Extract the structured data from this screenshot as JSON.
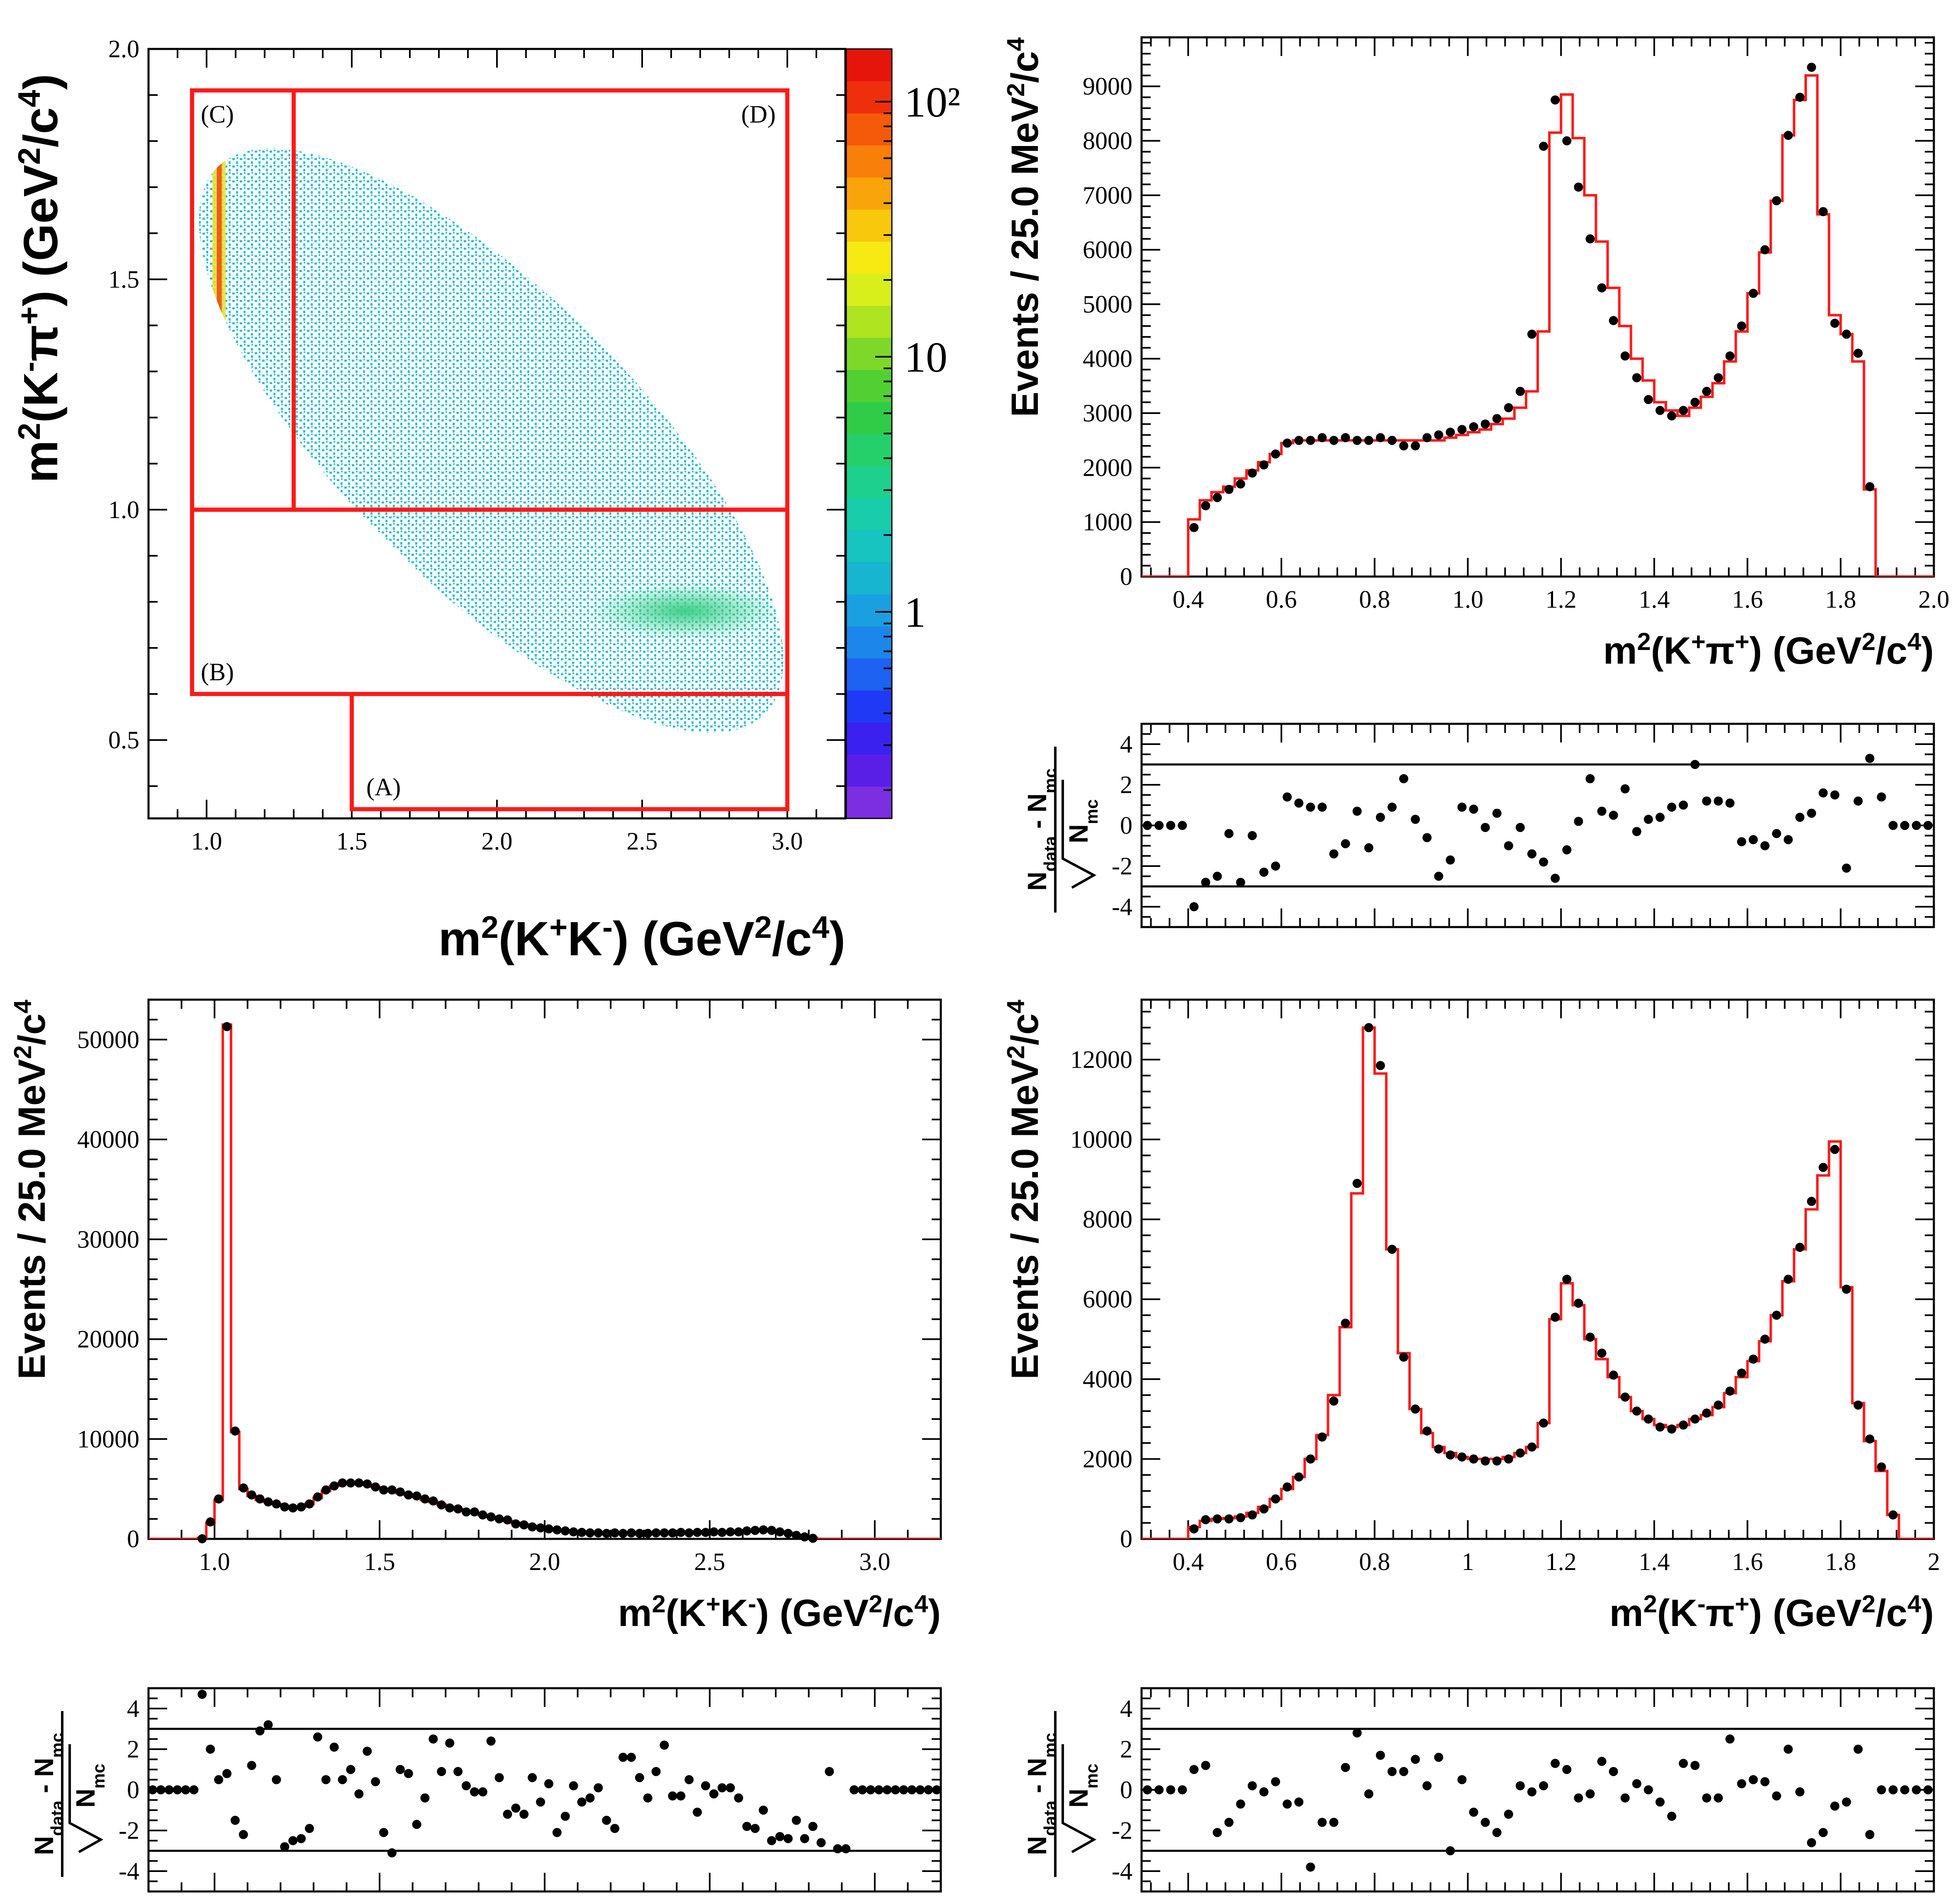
{
  "chart_data": [
    {
      "id": "dalitz",
      "type": "heatmap",
      "title": "",
      "xlabel": "m<sup>2</sup>(K<sup>+</sup>K<sup>-</sup>) (GeV<sup>2</sup>/c<sup>4</sup>)",
      "ylabel": "m<sup>2</sup>(K<sup>-</sup>π<sup>+</sup>) (GeV<sup>2</sup>/c<sup>4</sup>)",
      "xlim": [
        0.8,
        3.2
      ],
      "ylim": [
        0.33,
        2.0
      ],
      "xticks": [
        1.0,
        1.5,
        2.0,
        2.5,
        3.0
      ],
      "xtick_labels": [
        "1.0",
        "1.5",
        "2.0",
        "2.5",
        "3.0"
      ],
      "yticks": [
        0.5,
        1.0,
        1.5,
        2.0
      ],
      "ytick_labels": [
        "0.5",
        "1.0",
        "1.5",
        "2.0"
      ],
      "colorbar": {
        "scale": "log",
        "labels": [
          "1",
          "10",
          "10²"
        ],
        "label_values": [
          1,
          10,
          100
        ],
        "colors": [
          "#7b2fe0",
          "#5a1fe6",
          "#3a21f0",
          "#1f3af5",
          "#1d62f0",
          "#1c86ea",
          "#1aa0e0",
          "#18b5d0",
          "#17c4bf",
          "#19ccaa",
          "#1dd08e",
          "#25d06b",
          "#30cc47",
          "#52d033",
          "#7ed82a",
          "#aee420",
          "#d9ef1c",
          "#f6ea12",
          "#f8c80d",
          "#f9a40a",
          "#f87f09",
          "#f45a0a",
          "#ee2f0b",
          "#e6150c"
        ]
      },
      "regions": [
        {
          "label": "(A)",
          "x0": 1.5,
          "x1": 3.0,
          "y0": 0.35,
          "y1": 0.6
        },
        {
          "label": "(B)",
          "x0": 0.95,
          "x1": 3.0,
          "y0": 0.6,
          "y1": 1.0
        },
        {
          "label": "(C)",
          "x0": 0.95,
          "x1": 1.3,
          "y0": 1.0,
          "y1": 1.91
        },
        {
          "label": "(D)",
          "x0": 1.3,
          "x1": 3.0,
          "y0": 1.0,
          "y1": 1.91
        }
      ]
    },
    {
      "id": "kpip",
      "type": "histogram",
      "xlabel": "m<sup>2</sup>(K<sup>+</sup>π<sup>+</sup>) (GeV<sup>2</sup>/c<sup>4</sup>)",
      "ylabel": "Events / 25.0 MeV<sup>2</sup>/c<sup>4</sup>",
      "xlim": [
        0.3,
        2.0
      ],
      "ylim": [
        0,
        9900
      ],
      "xticks": [
        0.4,
        0.6,
        0.8,
        1.0,
        1.2,
        1.4,
        1.6,
        1.8,
        2.0
      ],
      "xtick_labels": [
        "0.4",
        "0.6",
        "0.8",
        "1.0",
        "1.2",
        "1.4",
        "1.6",
        "1.8",
        "2.0"
      ],
      "yticks": [
        0,
        1000,
        2000,
        3000,
        4000,
        5000,
        6000,
        7000,
        8000,
        9000
      ],
      "ytick_labels": [
        "0",
        "1000",
        "2000",
        "3000",
        "4000",
        "5000",
        "6000",
        "7000",
        "8000",
        "9000"
      ],
      "x_start": 0.3,
      "bin_width": 0.025,
      "mc": [
        0,
        0,
        0,
        0,
        1050,
        1400,
        1550,
        1650,
        1800,
        1950,
        2100,
        2250,
        2450,
        2500,
        2500,
        2500,
        2500,
        2500,
        2500,
        2500,
        2500,
        2500,
        2500,
        2500,
        2500,
        2500,
        2550,
        2600,
        2650,
        2700,
        2800,
        2900,
        3100,
        3400,
        4500,
        8150,
        8850,
        8050,
        7000,
        6150,
        5300,
        4600,
        4000,
        3600,
        3200,
        3050,
        2950,
        3100,
        3300,
        3550,
        3950,
        4500,
        5200,
        5950,
        6900,
        8100,
        8750,
        9200,
        6650,
        4800,
        4450,
        3950,
        1600,
        0,
        0,
        0,
        0,
        0
      ],
      "data": [
        null,
        null,
        null,
        null,
        900,
        1300,
        1450,
        1600,
        1700,
        1900,
        2050,
        2250,
        2450,
        2500,
        2500,
        2550,
        2500,
        2550,
        2500,
        2500,
        2550,
        2500,
        2400,
        2400,
        2550,
        2600,
        2650,
        2700,
        2750,
        2800,
        2900,
        3100,
        3400,
        4450,
        7900,
        8750,
        8000,
        7150,
        6200,
        5300,
        4700,
        4050,
        3650,
        3250,
        3050,
        2950,
        3050,
        3200,
        3400,
        3650,
        4050,
        4600,
        5200,
        6000,
        6900,
        8100,
        8800,
        9350,
        6700,
        4650,
        4450,
        4100,
        1650,
        null,
        null,
        null,
        null,
        null
      ],
      "residual_ylim": [
        -5.0,
        5.0
      ],
      "residual_yticks": [
        -4,
        -2,
        0,
        2,
        4
      ],
      "residual_ytick_labels": [
        "-4",
        "-2",
        "0",
        "2",
        "4"
      ],
      "residual_lines": [
        -3,
        3
      ],
      "residual_ylabel": "N<sub>data</sub> - N<sub>mc</sub>",
      "residual_ylabel_sqrt": "N<sub>mc</sub>",
      "residuals": [
        0,
        0,
        0,
        0,
        -4.0,
        -2.8,
        -2.5,
        -0.4,
        -2.8,
        -0.5,
        -2.3,
        -2.0,
        1.4,
        1.1,
        0.9,
        0.9,
        -1.4,
        -0.9,
        0.7,
        -1.1,
        0.4,
        0.9,
        2.3,
        0.3,
        -0.6,
        -2.5,
        -1.7,
        0.9,
        0.8,
        -0.1,
        0.6,
        -1.0,
        -0.1,
        -1.4,
        -1.8,
        -2.6,
        -1.2,
        0.2,
        2.3,
        0.7,
        0.5,
        1.8,
        -0.3,
        0.3,
        0.4,
        0.9,
        1.0,
        3.0,
        1.2,
        1.2,
        1.1,
        -0.8,
        -0.7,
        -1.0,
        -0.4,
        -0.7,
        0.4,
        0.6,
        1.6,
        1.5,
        -2.1,
        1.2,
        3.3,
        1.4,
        0,
        0,
        0,
        0
      ]
    },
    {
      "id": "kk",
      "type": "histogram",
      "xlabel": "m<sup>2</sup>(K<sup>+</sup>K<sup>-</sup>) (GeV<sup>2</sup>/c<sup>4</sup>)",
      "ylabel": "Events / 25.0 MeV<sup>2</sup>/c<sup>4</sup>",
      "xlim": [
        0.8,
        3.2
      ],
      "ylim": [
        0,
        54000
      ],
      "xticks": [
        1.0,
        1.5,
        2.0,
        2.5,
        3.0
      ],
      "xtick_labels": [
        "1.0",
        "1.5",
        "2.0",
        "2.5",
        "3.0"
      ],
      "yticks": [
        0,
        10000,
        20000,
        30000,
        40000,
        50000
      ],
      "ytick_labels": [
        "0",
        "10000",
        "20000",
        "30000",
        "40000",
        "50000"
      ],
      "x_start": 0.8,
      "bin_width": 0.025,
      "mc": [
        0,
        0,
        0,
        0,
        0,
        0,
        100,
        1600,
        3900,
        51500,
        10700,
        5000,
        4300,
        3900,
        3700,
        3500,
        3300,
        3200,
        3200,
        3500,
        4100,
        4800,
        5300,
        5550,
        5600,
        5550,
        5400,
        5200,
        5000,
        4800,
        4600,
        4400,
        4200,
        3900,
        3700,
        3450,
        3200,
        3000,
        2800,
        2600,
        2400,
        2200,
        2000,
        1800,
        1600,
        1450,
        1300,
        1150,
        1000,
        900,
        800,
        700,
        650,
        600,
        600,
        600,
        600,
        600,
        600,
        600,
        600,
        600,
        600,
        600,
        650,
        650,
        650,
        700,
        700,
        700,
        750,
        800,
        850,
        900,
        900,
        850,
        750,
        600,
        400,
        250,
        100,
        0,
        0,
        0,
        0,
        0,
        0,
        0,
        0,
        0,
        0,
        0,
        0,
        0,
        0,
        0
      ],
      "data": [
        null,
        null,
        null,
        null,
        null,
        null,
        10,
        1700,
        4000,
        51300,
        10800,
        5100,
        4400,
        4000,
        3700,
        3500,
        3200,
        3100,
        3200,
        3500,
        4200,
        4900,
        5300,
        5600,
        5600,
        5600,
        5500,
        5200,
        4900,
        4900,
        4700,
        4400,
        4300,
        4000,
        3800,
        3400,
        3100,
        3000,
        2700,
        2700,
        2400,
        2200,
        2000,
        1900,
        1500,
        1400,
        1200,
        1100,
        1000,
        900,
        800,
        700,
        650,
        600,
        600,
        550,
        600,
        550,
        600,
        550,
        550,
        600,
        600,
        600,
        650,
        600,
        650,
        650,
        700,
        650,
        700,
        700,
        800,
        850,
        900,
        850,
        700,
        550,
        350,
        200,
        60,
        null,
        null,
        null,
        null,
        null,
        null,
        null,
        null,
        null,
        null,
        null,
        null,
        null,
        null,
        null
      ],
      "residual_ylim": [
        -5.0,
        5.0
      ],
      "residual_yticks": [
        -4,
        -2,
        0,
        2,
        4
      ],
      "residual_ytick_labels": [
        "-4",
        "-2",
        "0",
        "2",
        "4"
      ],
      "residual_lines": [
        -3,
        3
      ],
      "residual_ylabel": "N<sub>data</sub> - N<sub>mc</sub>",
      "residual_ylabel_sqrt": "N<sub>mc</sub>",
      "residuals": [
        0,
        0,
        0,
        0,
        0,
        0,
        4.7,
        2.0,
        0.5,
        0.8,
        -1.5,
        -2.2,
        1.2,
        2.9,
        3.2,
        0.5,
        -2.8,
        -2.5,
        -2.4,
        -1.9,
        2.6,
        0.5,
        2.1,
        0.5,
        1.0,
        -0.2,
        1.9,
        0.4,
        -2.1,
        -3.1,
        1.0,
        0.8,
        -1.7,
        -0.4,
        2.5,
        0.9,
        2.3,
        0.9,
        0.2,
        -0.1,
        -0.1,
        2.4,
        0.6,
        -1.2,
        -0.9,
        -1.2,
        0.6,
        -0.6,
        0.3,
        -2.1,
        -1.3,
        0.2,
        -0.6,
        -0.4,
        0.1,
        -1.5,
        -1.9,
        1.6,
        1.6,
        0.6,
        -0.4,
        0.9,
        2.2,
        -0.3,
        -0.3,
        0.5,
        -1.1,
        0.2,
        -0.2,
        0.1,
        0.1,
        -0.4,
        -1.8,
        -1.9,
        -1.0,
        -2.5,
        -2.3,
        -2.4,
        -1.5,
        -2.4,
        -1.8,
        -2.6,
        0.9,
        -2.9,
        -2.9,
        0,
        0,
        0,
        0,
        0,
        0,
        0,
        0,
        0,
        0,
        0
      ]
    },
    {
      "id": "kmpip",
      "type": "histogram",
      "xlabel": "m<sup>2</sup>(K<sup>-</sup>π<sup>+</sup>) (GeV<sup>2</sup>/c<sup>4</sup>)",
      "ylabel": "Events / 25.0 MeV<sup>2</sup>/c<sup>4</sup>",
      "xlim": [
        0.3,
        2.0
      ],
      "ylim": [
        0,
        13500
      ],
      "xticks": [
        0.4,
        0.6,
        0.8,
        1.0,
        1.2,
        1.4,
        1.6,
        1.8,
        2.0
      ],
      "xtick_labels": [
        "0.4",
        "0.6",
        "0.8",
        "1",
        "1.2",
        "1.4",
        "1.6",
        "1.8",
        "2"
      ],
      "yticks": [
        0,
        2000,
        4000,
        6000,
        8000,
        10000,
        12000
      ],
      "ytick_labels": [
        "0",
        "2000",
        "4000",
        "6000",
        "8000",
        "10000",
        "12000"
      ],
      "x_start": 0.3,
      "bin_width": 0.025,
      "mc": [
        0,
        0,
        0,
        0,
        300,
        450,
        500,
        520,
        560,
        650,
        800,
        1000,
        1250,
        1550,
        2000,
        2600,
        3600,
        5300,
        8650,
        12800,
        11650,
        7250,
        4650,
        3250,
        2650,
        2300,
        2150,
        2050,
        2000,
        2000,
        2000,
        2050,
        2150,
        2300,
        2900,
        5500,
        6400,
        5850,
        5000,
        4500,
        4050,
        3550,
        3200,
        3000,
        2850,
        2800,
        2850,
        3000,
        3100,
        3300,
        3650,
        4050,
        4450,
        4950,
        5600,
        6450,
        7250,
        8250,
        9100,
        9950,
        6300,
        3400,
        2450,
        1700,
        600,
        0,
        0,
        0
      ],
      "data": [
        null,
        null,
        null,
        null,
        250,
        480,
        500,
        500,
        530,
        600,
        750,
        1000,
        1300,
        1550,
        2000,
        2550,
        3450,
        5400,
        8900,
        12800,
        11850,
        7250,
        4550,
        3250,
        2700,
        2250,
        2100,
        2050,
        2000,
        1950,
        1950,
        2000,
        2150,
        2300,
        2900,
        5550,
        6500,
        5900,
        5050,
        4650,
        4100,
        3550,
        3200,
        3000,
        2800,
        2750,
        2850,
        3000,
        3150,
        3350,
        3700,
        4150,
        4500,
        5000,
        5600,
        6500,
        7300,
        8450,
        9300,
        9750,
        6250,
        3350,
        2500,
        1800,
        600,
        null,
        null,
        null
      ],
      "residual_ylim": [
        -5.0,
        5.0
      ],
      "residual_yticks": [
        -4,
        -2,
        0,
        2,
        4
      ],
      "residual_ytick_labels": [
        "-4",
        "-2",
        "0",
        "2",
        "4"
      ],
      "residual_lines": [
        -3,
        3
      ],
      "residual_ylabel": "N<sub>data</sub> - N<sub>mc</sub>",
      "residual_ylabel_sqrt": "N<sub>mc</sub>",
      "residuals": [
        0,
        0,
        0,
        0,
        1.0,
        1.2,
        -2.1,
        -1.6,
        -0.7,
        0.2,
        -0.1,
        0.4,
        -0.7,
        -0.6,
        -3.8,
        -1.6,
        -1.6,
        1.1,
        2.8,
        -0.2,
        1.7,
        0.9,
        0.9,
        1.5,
        0.2,
        1.6,
        -3.0,
        0.5,
        -1.1,
        -1.6,
        -2.1,
        -1.2,
        0.2,
        -0.1,
        0.2,
        1.3,
        1.0,
        -0.4,
        -0.2,
        1.4,
        0.9,
        -0.4,
        0.3,
        0.0,
        -0.6,
        -1.3,
        1.3,
        1.2,
        -0.4,
        -0.4,
        2.5,
        0.3,
        0.5,
        0.4,
        -0.3,
        2.0,
        -0.1,
        -2.6,
        -2.1,
        -0.8,
        -0.6,
        2.0,
        -2.2,
        0,
        0,
        0,
        0,
        0
      ]
    }
  ]
}
